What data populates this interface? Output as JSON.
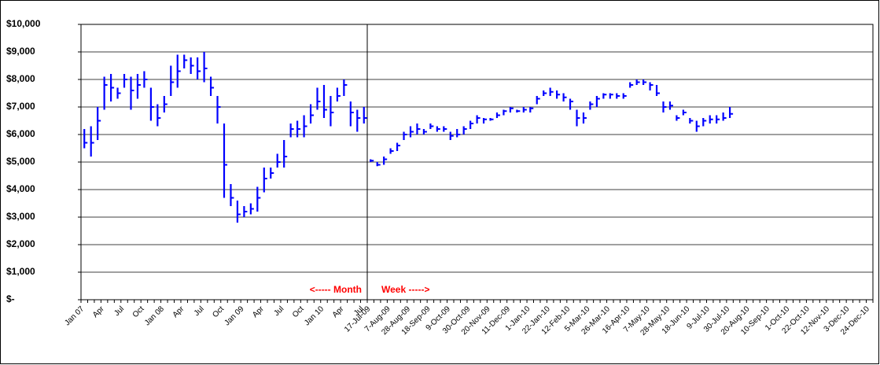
{
  "chart_data": [
    {
      "type": "ohlc",
      "color": "#0000ff",
      "grid": true,
      "ylim": [
        0,
        10000
      ],
      "yticks": [
        {
          "value": 0,
          "label": "$-"
        },
        {
          "value": 1000,
          "label": "$1,000"
        },
        {
          "value": 2000,
          "label": "$2,000"
        },
        {
          "value": 3000,
          "label": "$3,000"
        },
        {
          "value": 4000,
          "label": "$4,000"
        },
        {
          "value": 5000,
          "label": "$5,000"
        },
        {
          "value": 6000,
          "label": "$6,000"
        },
        {
          "value": 7000,
          "label": "$7,000"
        },
        {
          "value": 8000,
          "label": "$8,000"
        },
        {
          "value": 9000,
          "label": "$9,000"
        },
        {
          "value": 10000,
          "label": "$10,000"
        }
      ],
      "annotation": "<----- Month",
      "categories": [
        "Jan 07",
        null,
        null,
        "Apr",
        null,
        null,
        "Jul",
        null,
        null,
        "Oct",
        null,
        null,
        "Jan 08",
        null,
        null,
        "Apr",
        null,
        null,
        "Jul",
        null,
        null,
        "Oct",
        null,
        null,
        "Jan 09",
        null,
        null,
        "Apr",
        null,
        null,
        "Jul",
        null,
        null,
        "Oct",
        null,
        null,
        "Jan 10",
        null,
        null,
        "Apr",
        null,
        null,
        "Jul"
      ],
      "high": [
        6200,
        6300,
        7000,
        8100,
        8200,
        7700,
        8200,
        8100,
        8200,
        8300,
        7700,
        7100,
        7400,
        8500,
        8900,
        8900,
        8800,
        8800,
        9000,
        8100,
        7400,
        6400,
        4200,
        3600,
        3400,
        3500,
        4100,
        4800,
        4800,
        5300,
        5800,
        6400,
        6500,
        6700,
        7100,
        7700,
        7800,
        7400,
        7700,
        8000,
        7200,
        6900,
        7000
      ],
      "low": [
        5500,
        5200,
        5800,
        6900,
        7200,
        7300,
        7700,
        6900,
        7300,
        7700,
        6500,
        6300,
        6800,
        7400,
        7700,
        8400,
        8200,
        8000,
        7900,
        7400,
        6400,
        3700,
        3400,
        2800,
        3000,
        3100,
        3200,
        3900,
        4400,
        4800,
        4800,
        5900,
        5900,
        5900,
        6400,
        6900,
        6600,
        6300,
        7200,
        7400,
        6300,
        6100,
        6400
      ],
      "close": [
        5700,
        5700,
        6500,
        7800,
        7700,
        7500,
        8000,
        7600,
        7800,
        8000,
        7000,
        6600,
        7100,
        7900,
        8300,
        8700,
        8500,
        8300,
        8400,
        7700,
        7000,
        4900,
        3700,
        3100,
        3200,
        3300,
        3700,
        4400,
        4600,
        5000,
        5200,
        6200,
        6200,
        6300,
        6700,
        7200,
        6900,
        6800,
        7400,
        7800,
        6800,
        6600,
        6600
      ]
    },
    {
      "type": "ohlc",
      "color": "#0000ff",
      "annotation": "Week ----->",
      "categories": [
        "17-Jul-09",
        null,
        null,
        "7-Aug-09",
        null,
        null,
        "28-Aug-09",
        null,
        null,
        "18-Sep-09",
        null,
        null,
        "9-Oct-09",
        null,
        null,
        "30-Oct-09",
        null,
        null,
        "20-Nov-09",
        null,
        null,
        "11-Dec-09",
        null,
        null,
        "1-Jan-10",
        null,
        null,
        "22-Jan-10",
        null,
        null,
        "12-Feb-10",
        null,
        null,
        "5-Mar-10",
        null,
        null,
        "26-Mar-10",
        null,
        null,
        "16-Apr-10",
        null,
        null,
        "7-May-10",
        null,
        null,
        "28-May-10",
        null,
        null,
        "18-Jun-10",
        null,
        null,
        "9-Jul-10",
        null,
        null,
        "30-Jul-10",
        null,
        null,
        "20-Aug-10",
        null,
        null,
        "10-Sep-10",
        null,
        null,
        "1-Oct-10",
        null,
        null,
        "22-Oct-10",
        null,
        null,
        "12-Nov-10",
        null,
        null,
        "3-Dec-10",
        null,
        null,
        "24-Dec-10"
      ],
      "high": [
        5100,
        5000,
        5200,
        5500,
        5700,
        6100,
        6300,
        6400,
        6200,
        6400,
        6300,
        6300,
        6100,
        6200,
        6300,
        6500,
        6700,
        6600,
        6600,
        6800,
        6900,
        7000,
        6900,
        7000,
        7000,
        7400,
        7600,
        7700,
        7600,
        7500,
        7300,
        6900,
        6800,
        7200,
        7400,
        7500,
        7500,
        7500,
        7500,
        7900,
        8000,
        8000,
        7900,
        7800,
        7200,
        7200,
        6700,
        6900,
        6600,
        6500,
        6600,
        6700,
        6700,
        6800,
        7000,
        null,
        null,
        null,
        null,
        null,
        null,
        null,
        null,
        null,
        null,
        null,
        null,
        null,
        null,
        null,
        null,
        null,
        null,
        null,
        null,
        null
      ],
      "low": [
        5000,
        4850,
        4900,
        5300,
        5400,
        5800,
        5900,
        6000,
        6000,
        6200,
        6100,
        6100,
        5800,
        5900,
        6000,
        6200,
        6400,
        6400,
        6500,
        6600,
        6700,
        6800,
        6800,
        6800,
        6800,
        7100,
        7400,
        7400,
        7300,
        7200,
        6900,
        6300,
        6400,
        6900,
        7000,
        7300,
        7300,
        7300,
        7300,
        7700,
        7800,
        7800,
        7600,
        7400,
        6800,
        6900,
        6500,
        6700,
        6400,
        6100,
        6300,
        6400,
        6400,
        6500,
        6600,
        null,
        null,
        null,
        null,
        null,
        null,
        null,
        null,
        null,
        null,
        null,
        null,
        null,
        null,
        null,
        null,
        null,
        null,
        null,
        null,
        null
      ],
      "close": [
        5050,
        4900,
        5100,
        5400,
        5600,
        6000,
        6100,
        6200,
        6100,
        6300,
        6200,
        6200,
        5950,
        6000,
        6200,
        6400,
        6600,
        6550,
        6550,
        6700,
        6850,
        6950,
        6850,
        6900,
        6950,
        7300,
        7500,
        7550,
        7450,
        7350,
        7200,
        6600,
        6600,
        7100,
        7300,
        7450,
        7450,
        7400,
        7400,
        7800,
        7900,
        7900,
        7800,
        7500,
        7000,
        7050,
        6600,
        6800,
        6500,
        6300,
        6500,
        6550,
        6550,
        6600,
        6750,
        null,
        null,
        null,
        null,
        null,
        null,
        null,
        null,
        null,
        null,
        null,
        null,
        null,
        null,
        null,
        null,
        null,
        null,
        null,
        null,
        null
      ]
    }
  ]
}
